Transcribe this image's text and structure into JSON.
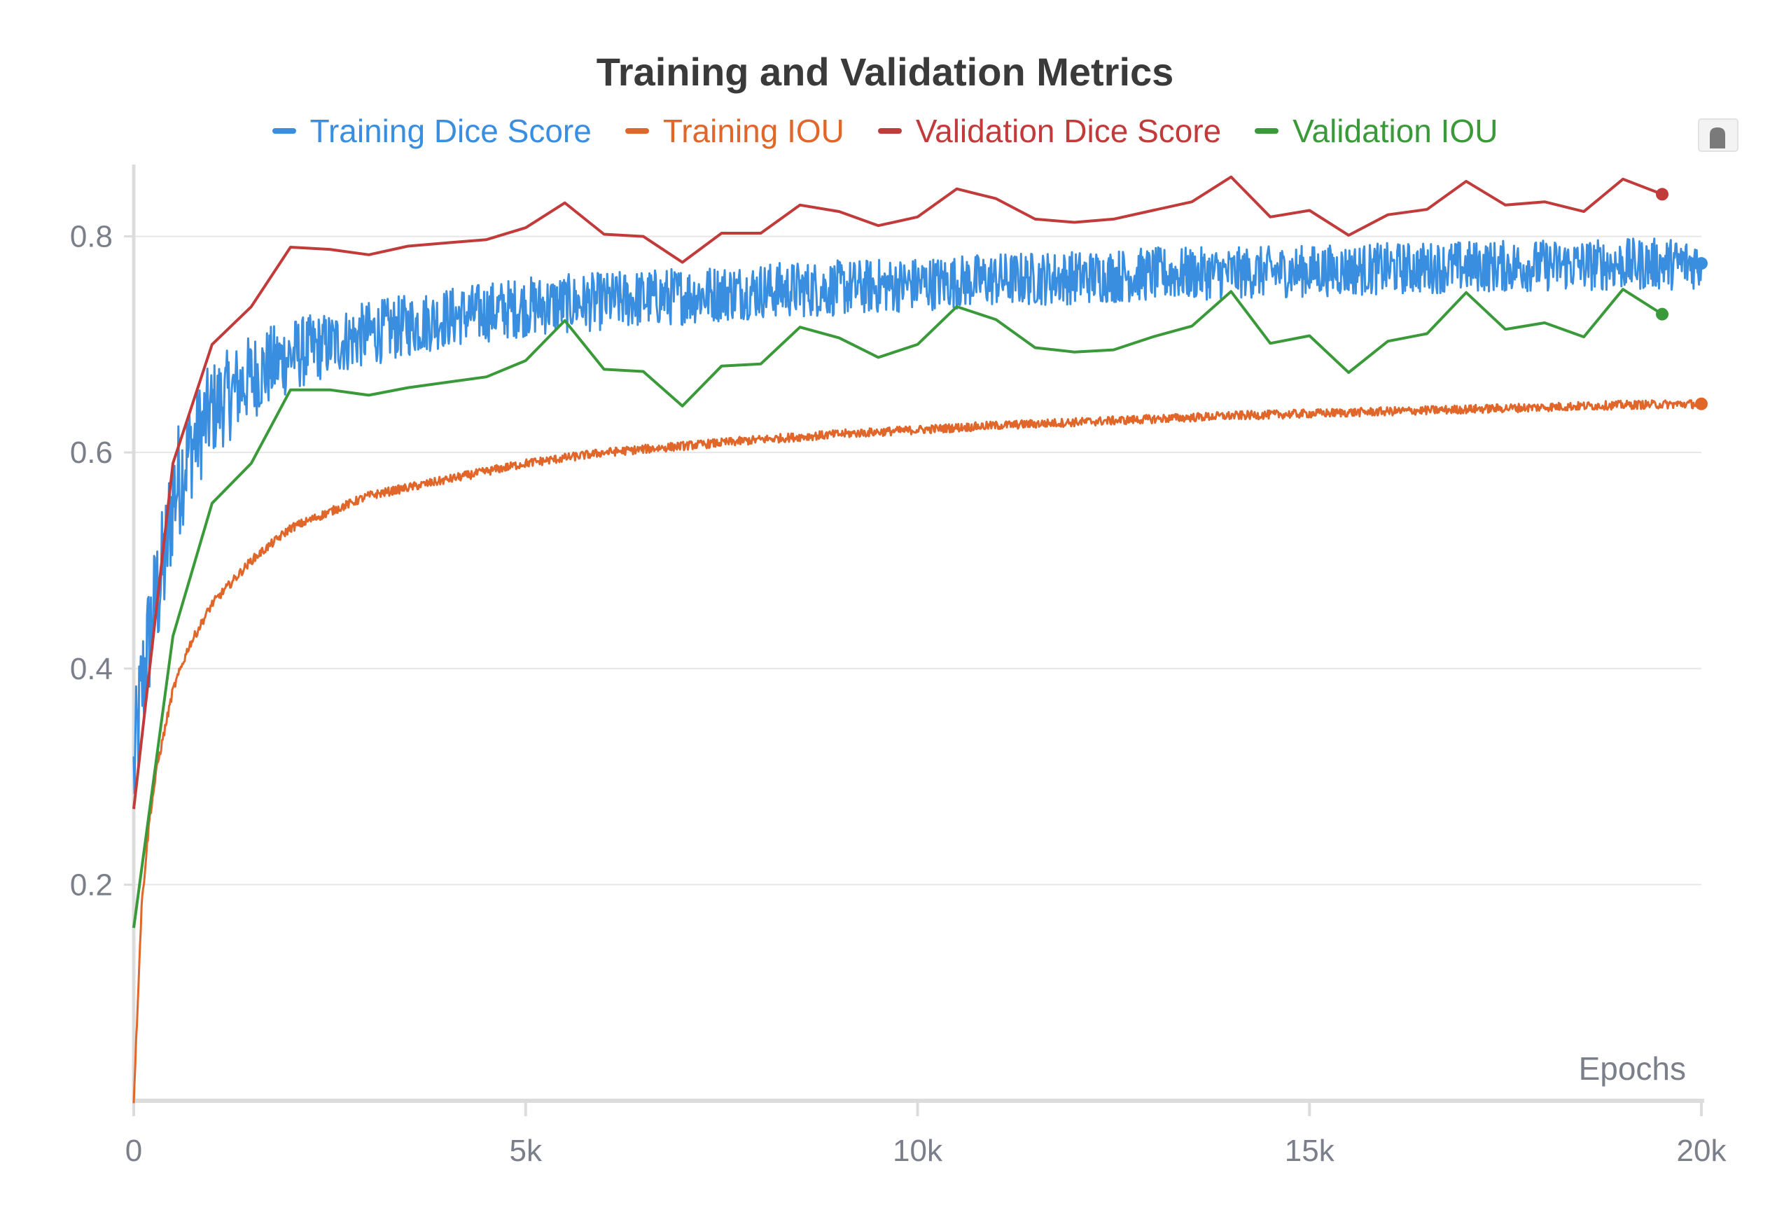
{
  "chart_data": {
    "type": "line",
    "title": "Training and Validation Metrics",
    "xlabel": "Epochs",
    "ylabel": "",
    "xlim": [
      0,
      20000
    ],
    "ylim": [
      0,
      0.86
    ],
    "x_ticks": [
      0,
      5000,
      10000,
      15000,
      20000
    ],
    "x_tick_labels": [
      "0",
      "5k",
      "10k",
      "15k",
      "20k"
    ],
    "y_ticks": [
      0.2,
      0.4,
      0.6,
      0.8
    ],
    "y_tick_labels": [
      "0.2",
      "0.4",
      "0.6",
      "0.8"
    ],
    "grid": true,
    "legend_position": "top",
    "series": [
      {
        "name": "Training Dice Score",
        "color": "#3a8ee0",
        "style": "noisy",
        "last_marker": true,
        "x": [
          0,
          100,
          200,
          300,
          400,
          500,
          700,
          1000,
          1500,
          2000,
          2500,
          3000,
          4000,
          5000,
          6000,
          7000,
          8000,
          9000,
          10000,
          11000,
          12000,
          13000,
          14000,
          15000,
          16000,
          17000,
          18000,
          19000,
          20000
        ],
        "y": [
          0.3,
          0.38,
          0.43,
          0.47,
          0.5,
          0.56,
          0.6,
          0.64,
          0.67,
          0.69,
          0.7,
          0.71,
          0.725,
          0.735,
          0.74,
          0.745,
          0.75,
          0.752,
          0.756,
          0.76,
          0.762,
          0.765,
          0.766,
          0.768,
          0.77,
          0.772,
          0.773,
          0.774,
          0.775
        ],
        "noise": [
          0.06,
          0.06,
          0.06,
          0.06,
          0.06,
          0.06,
          0.05,
          0.045,
          0.04,
          0.035,
          0.03,
          0.03,
          0.028,
          0.028,
          0.027,
          0.027,
          0.026,
          0.026,
          0.025,
          0.025,
          0.025,
          0.025,
          0.024,
          0.024,
          0.024,
          0.024,
          0.024,
          0.024,
          0.024
        ]
      },
      {
        "name": "Training IOU",
        "color": "#e0662a",
        "style": "noisy",
        "last_marker": true,
        "x": [
          0,
          100,
          200,
          300,
          500,
          700,
          1000,
          1500,
          2000,
          2500,
          3000,
          4000,
          5000,
          6000,
          7000,
          8000,
          9000,
          10000,
          11000,
          12000,
          13000,
          14000,
          15000,
          16000,
          17000,
          18000,
          19000,
          20000
        ],
        "y": [
          0.0,
          0.18,
          0.26,
          0.31,
          0.38,
          0.42,
          0.46,
          0.5,
          0.53,
          0.545,
          0.56,
          0.575,
          0.59,
          0.6,
          0.606,
          0.612,
          0.617,
          0.621,
          0.625,
          0.628,
          0.631,
          0.634,
          0.636,
          0.638,
          0.64,
          0.642,
          0.644,
          0.645
        ],
        "noise": [
          0.004,
          0.004,
          0.004,
          0.004,
          0.004,
          0.004,
          0.004,
          0.004,
          0.004,
          0.004,
          0.004,
          0.004,
          0.004,
          0.004,
          0.004,
          0.004,
          0.004,
          0.004,
          0.004,
          0.004,
          0.004,
          0.004,
          0.004,
          0.004,
          0.004,
          0.004,
          0.004,
          0.004
        ]
      },
      {
        "name": "Validation Dice Score",
        "color": "#c23b3b",
        "style": "line",
        "last_marker": true,
        "x": [
          0,
          500,
          1000,
          1500,
          2000,
          2500,
          3000,
          3500,
          4000,
          4500,
          5000,
          5500,
          6000,
          6500,
          7000,
          7500,
          8000,
          8500,
          9000,
          9500,
          10000,
          10500,
          11000,
          11500,
          12000,
          12500,
          13000,
          13500,
          14000,
          14500,
          15000,
          15500,
          16000,
          16500,
          17000,
          17500,
          18000,
          18500,
          19000,
          19500
        ],
        "y": [
          0.27,
          0.59,
          0.7,
          0.735,
          0.79,
          0.788,
          0.783,
          0.791,
          0.794,
          0.797,
          0.808,
          0.831,
          0.802,
          0.8,
          0.776,
          0.803,
          0.803,
          0.829,
          0.823,
          0.81,
          0.818,
          0.844,
          0.835,
          0.816,
          0.813,
          0.816,
          0.824,
          0.832,
          0.855,
          0.818,
          0.824,
          0.801,
          0.82,
          0.825,
          0.851,
          0.829,
          0.832,
          0.823,
          0.853,
          0.839
        ]
      },
      {
        "name": "Validation IOU",
        "color": "#3a9a3a",
        "style": "line",
        "last_marker": true,
        "x": [
          0,
          500,
          1000,
          1500,
          2000,
          2500,
          3000,
          3500,
          4000,
          4500,
          5000,
          5500,
          6000,
          6500,
          7000,
          7500,
          8000,
          8500,
          9000,
          9500,
          10000,
          10500,
          11000,
          11500,
          12000,
          12500,
          13000,
          13500,
          14000,
          14500,
          15000,
          15500,
          16000,
          16500,
          17000,
          17500,
          18000,
          18500,
          19000,
          19500
        ],
        "y": [
          0.16,
          0.43,
          0.553,
          0.59,
          0.658,
          0.658,
          0.653,
          0.66,
          0.665,
          0.67,
          0.685,
          0.722,
          0.677,
          0.675,
          0.643,
          0.68,
          0.682,
          0.716,
          0.706,
          0.688,
          0.7,
          0.735,
          0.723,
          0.697,
          0.693,
          0.695,
          0.707,
          0.717,
          0.749,
          0.701,
          0.708,
          0.674,
          0.703,
          0.71,
          0.748,
          0.714,
          0.72,
          0.707,
          0.751,
          0.728
        ]
      }
    ]
  },
  "icons": {
    "expand": "expand-icon"
  }
}
